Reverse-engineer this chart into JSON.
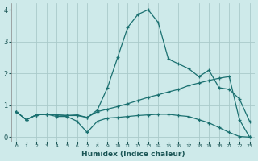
{
  "xlabel": "Humidex (Indice chaleur)",
  "background_color": "#ceeaea",
  "grid_color": "#aacaca",
  "line_color": "#1a7070",
  "xlim": [
    -0.5,
    23.5
  ],
  "ylim": [
    -0.15,
    4.2
  ],
  "x_ticks": [
    0,
    1,
    2,
    3,
    4,
    5,
    6,
    7,
    8,
    9,
    10,
    11,
    12,
    13,
    14,
    15,
    16,
    17,
    18,
    19,
    20,
    21,
    22,
    23
  ],
  "y_ticks": [
    0,
    1,
    2,
    3,
    4
  ],
  "series": [
    {
      "x": [
        0,
        1,
        2,
        3,
        4,
        5,
        6,
        7,
        8,
        9,
        10,
        11,
        12,
        13,
        14,
        15,
        16,
        17,
        18,
        19,
        20,
        21,
        22,
        23
      ],
      "y": [
        0.8,
        0.55,
        0.7,
        0.72,
        0.7,
        0.68,
        0.68,
        0.62,
        0.85,
        1.55,
        2.5,
        3.45,
        3.85,
        4.0,
        3.6,
        2.45,
        2.3,
        2.15,
        1.9,
        2.1,
        1.55,
        1.5,
        1.2,
        0.5
      ]
    },
    {
      "x": [
        0,
        1,
        2,
        3,
        4,
        5,
        6,
        7,
        8,
        9,
        10,
        11,
        12,
        13,
        14,
        15,
        16,
        17,
        18,
        19,
        20,
        21,
        22,
        23
      ],
      "y": [
        0.8,
        0.55,
        0.7,
        0.72,
        0.65,
        0.65,
        0.5,
        0.15,
        0.5,
        0.6,
        0.62,
        0.65,
        0.68,
        0.7,
        0.72,
        0.72,
        0.68,
        0.65,
        0.55,
        0.45,
        0.3,
        0.15,
        0.02,
        0.0
      ]
    },
    {
      "x": [
        0,
        1,
        2,
        3,
        4,
        5,
        6,
        7,
        8,
        9,
        10,
        11,
        12,
        13,
        14,
        15,
        16,
        17,
        18,
        19,
        20,
        21,
        22,
        23
      ],
      "y": [
        0.8,
        0.55,
        0.7,
        0.72,
        0.7,
        0.68,
        0.7,
        0.62,
        0.8,
        0.88,
        0.96,
        1.05,
        1.15,
        1.25,
        1.33,
        1.42,
        1.5,
        1.62,
        1.7,
        1.78,
        1.85,
        1.9,
        0.55,
        0.0
      ]
    }
  ]
}
